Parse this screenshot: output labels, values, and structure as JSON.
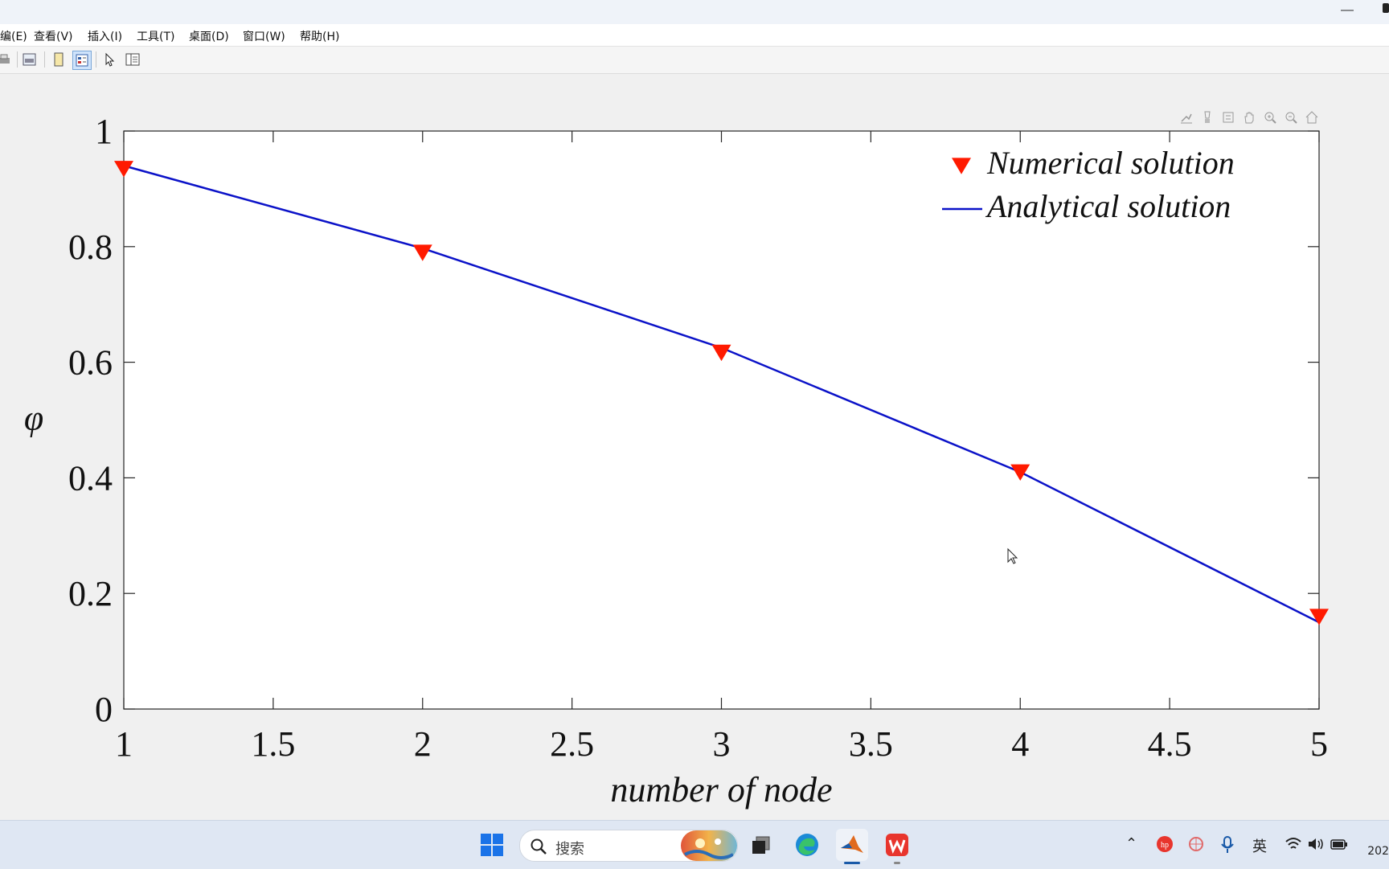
{
  "menu": {
    "items": [
      "编(E)",
      "查看(V)",
      "插入(I)",
      "工具(T)",
      "桌面(D)",
      "窗口(W)",
      "帮助(H)"
    ]
  },
  "toolbar": {
    "icons": [
      "print-icon",
      "print-preview-icon",
      "new-figure-icon",
      "property-editor-icon",
      "pointer-icon",
      "plot-browser-icon"
    ]
  },
  "axes_toolbar": {
    "icons": [
      "export-icon",
      "brush-icon",
      "datatip-icon",
      "pan-icon",
      "zoom-in-icon",
      "zoom-out-icon",
      "home-icon"
    ]
  },
  "chart_data": {
    "type": "line",
    "xlabel": "number of node",
    "ylabel": "φ",
    "xlim": [
      1,
      5
    ],
    "ylim": [
      0,
      1
    ],
    "xticks": [
      "1",
      "1.5",
      "2",
      "2.5",
      "3",
      "3.5",
      "4",
      "4.5",
      "5"
    ],
    "yticks": [
      "0",
      "0.2",
      "0.4",
      "0.6",
      "0.8",
      "1"
    ],
    "legend_position": "top-right",
    "grid": false,
    "series": [
      {
        "name": "Numerical solution",
        "style": "markers",
        "marker": "triangle-down",
        "color": "#ff1a00",
        "x": [
          1,
          2,
          3,
          4,
          5
        ],
        "y": [
          0.935,
          0.79,
          0.617,
          0.41,
          0.16
        ]
      },
      {
        "name": "Analytical solution",
        "style": "line",
        "color": "#0b12c8",
        "x": [
          1,
          2,
          3,
          4,
          5
        ],
        "y": [
          0.94,
          0.797,
          0.625,
          0.41,
          0.15
        ]
      }
    ]
  },
  "taskbar": {
    "search_placeholder": "搜索",
    "icons": [
      "start-icon",
      "search-icon",
      "widget-icon",
      "task-view-icon",
      "edge-icon",
      "matlab-icon",
      "wps-icon"
    ],
    "tray": {
      "ime": "英",
      "clock": "202"
    }
  },
  "colors": {
    "marker": "#ff1a00",
    "line": "#0b12c8",
    "taskbar": "#dfe7f3"
  }
}
